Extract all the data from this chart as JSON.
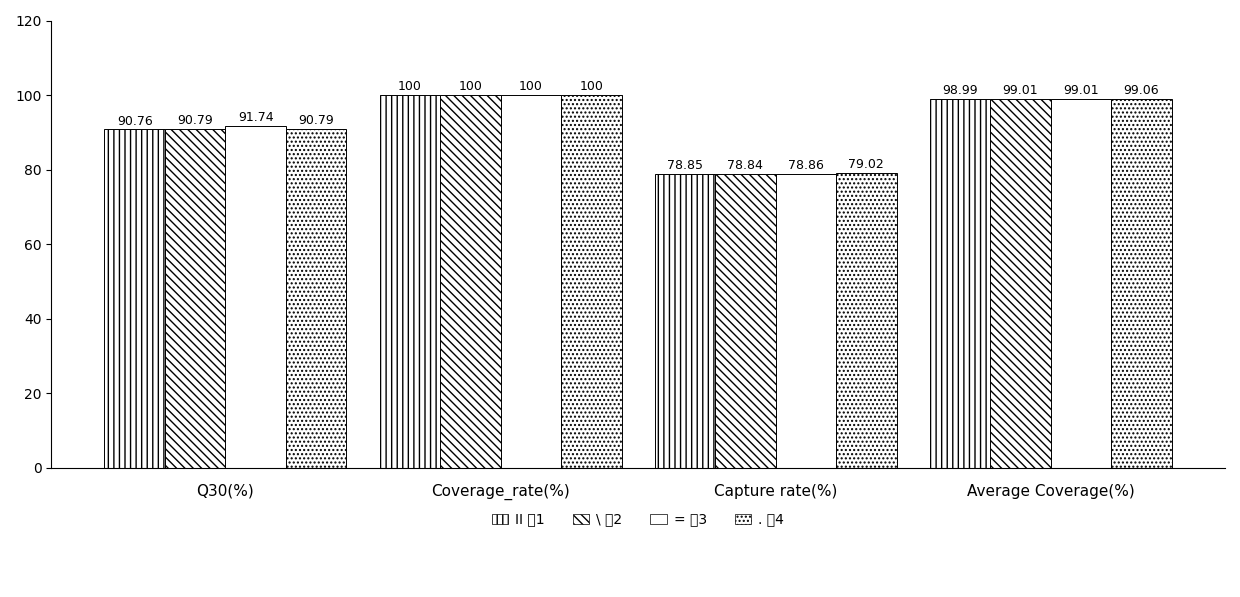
{
  "groups": [
    "Q30(%)",
    "Coverage_rate(%)",
    "Capture rate(%)",
    "Average Coverage(%)"
  ],
  "series": [
    {
      "name": "例1",
      "values": [
        90.76,
        100,
        78.85,
        98.99
      ],
      "hatch": "|||"
    },
    {
      "name": "例2",
      "values": [
        90.79,
        100,
        78.84,
        99.01
      ],
      "hatch": "\\\\\\\\"
    },
    {
      "name": "例3",
      "values": [
        91.74,
        100,
        78.86,
        99.01
      ],
      "hatch": "==="
    },
    {
      "name": "例4",
      "values": [
        90.79,
        100,
        79.02,
        99.06
      ],
      "hatch": "...."
    }
  ],
  "ylim": [
    0,
    120
  ],
  "yticks": [
    0,
    20,
    40,
    60,
    80,
    100,
    120
  ],
  "bar_width": 0.22,
  "value_fontsize": 9,
  "axis_fontsize": 11,
  "background_color": "#ffffff",
  "bar_edge_color": "#000000",
  "bar_face_color": "#ffffff",
  "legend_items": [
    {
      "label": "II 例1",
      "hatch": "|||"
    },
    {
      "label": "\\ 例2",
      "hatch": "\\\\\\\\"
    },
    {
      "label": "= 例3",
      "hatch": "==="
    },
    {
      "label": ". 例4",
      "hatch": "...."
    }
  ]
}
